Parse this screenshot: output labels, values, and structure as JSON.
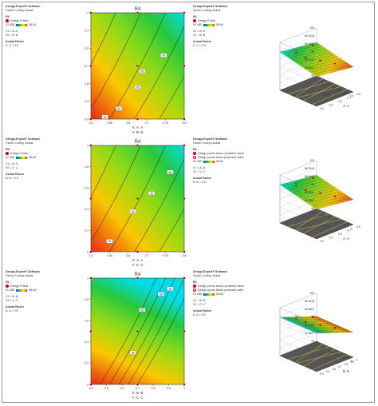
{
  "panels": [
    {
      "software": "Design-Expert® Software",
      "coding": "Factor Coding: Actual",
      "response": "R4",
      "design_points_label": "Design Points",
      "ramp_min": "91.485",
      "ramp_max": "98.64",
      "above_label": "",
      "below_label": "",
      "x1_line": "X1 = A: A",
      "x2_line": "X2 = B: B",
      "actual_factor_title": "Actual Factor",
      "actual_factor_value": "C: C = 0.5"
    },
    {
      "software": "Design-Expert® Software",
      "coding": "Factor Coding: Actual",
      "response": "R4",
      "design_points_label": "Design Points",
      "ramp_min": "91.485",
      "ramp_max": "98.64",
      "above_label": "Design points above predicted value",
      "below_label": "Design points below predicted value",
      "x1_line": "X1 = A: A",
      "x2_line": "X2 = C: C",
      "actual_factor_title": "Actual Factor",
      "actual_factor_value": "B: B = 0.6"
    },
    {
      "software": "Design-Expert® Software",
      "coding": "Factor Coding: Actual",
      "response": "R4",
      "design_points_label": "Design Points",
      "ramp_min": "91.485",
      "ramp_max": "98.64",
      "above_label": "Design points above predicted value",
      "below_label": "Design points below predicted value",
      "x1_line": "X1 = B: B",
      "x2_line": "X2 = C: C",
      "actual_factor_title": "Actual Factor",
      "actual_factor_value": "A: A = 0.6"
    }
  ],
  "chart_data": [
    {
      "type": "contour",
      "title": "R4",
      "xlabel": "X: A: A",
      "ylabel": "Y: B: B",
      "x_ticks": [
        "0.4",
        "0.55",
        "0.6",
        "0.7",
        "0.75",
        "0.8"
      ],
      "y_ticks": [
        "0.4",
        "0.5",
        "0.6",
        "0.7",
        "0.8",
        "0.9",
        "1"
      ],
      "xlim": [
        0.4,
        0.8
      ],
      "ylim": [
        0.4,
        1.0
      ],
      "contour_labels": [
        "95",
        "94",
        "95",
        "96",
        "93"
      ],
      "design_points": [
        [
          0.4,
          0.4
        ],
        [
          0.4,
          1.0
        ],
        [
          0.8,
          0.4
        ],
        [
          0.8,
          1.0
        ],
        [
          0.6,
          0.7
        ],
        [
          0.6,
          0.4
        ],
        [
          0.6,
          1.0
        ],
        [
          0.4,
          0.7
        ],
        [
          0.8,
          0.7
        ]
      ]
    },
    {
      "type": "contour",
      "title": "R4",
      "xlabel": "X: A: A",
      "ylabel": "Y: C: C",
      "x_ticks": [
        "0.4",
        "0.55",
        "0.6",
        "0.7",
        "0.75",
        "0.8"
      ],
      "y_ticks": [
        "0",
        "0.2",
        "0.4",
        "0.6",
        "0.8",
        "1"
      ],
      "xlim": [
        0.4,
        0.8
      ],
      "ylim": [
        0,
        1.0
      ],
      "contour_labels": [
        "93",
        "94",
        "95",
        "96"
      ],
      "design_points": [
        [
          0.4,
          0.0
        ],
        [
          0.4,
          1.0
        ],
        [
          0.8,
          0.0
        ],
        [
          0.8,
          1.0
        ],
        [
          0.6,
          0.5
        ],
        [
          0.6,
          0.0
        ],
        [
          0.6,
          1.0
        ],
        [
          0.4,
          0.5
        ],
        [
          0.8,
          0.5
        ]
      ]
    },
    {
      "type": "contour",
      "title": "R4",
      "xlabel": "X: B: B",
      "ylabel": "Y: C: C",
      "x_ticks": [
        "0.4",
        "0.5",
        "0.6",
        "0.7",
        "0.8",
        "0.9",
        "1"
      ],
      "y_ticks": [
        "0",
        "0.2",
        "0.4",
        "0.6",
        "0.8",
        "1"
      ],
      "xlim": [
        0.4,
        1.0
      ],
      "ylim": [
        0,
        1.0
      ],
      "contour_labels": [
        "94",
        "95",
        "96",
        "95"
      ],
      "design_points": [
        [
          0.4,
          0.0
        ],
        [
          0.4,
          1.0
        ],
        [
          1.0,
          0.0
        ],
        [
          1.0,
          1.0
        ],
        [
          0.7,
          0.5
        ],
        [
          0.7,
          0.0
        ],
        [
          0.7,
          1.0
        ],
        [
          0.4,
          0.5
        ],
        [
          1.0,
          0.5
        ]
      ]
    },
    {
      "type": "surface",
      "zlabel": "R4",
      "z_ticks": [
        "100",
        "98.3333",
        "96.6667",
        "95",
        "93.3333",
        "91.6667",
        "90"
      ],
      "xlabel": "B: B",
      "ylabel": "A: A",
      "x_ticks": [
        "1",
        "0.9",
        "0.8",
        "0.7",
        "0.6",
        "0.5",
        "0.4"
      ],
      "y_ticks": [
        "0.8",
        "0.7",
        "0.6",
        "0.5",
        "0.4"
      ]
    },
    {
      "type": "surface",
      "zlabel": "R4",
      "z_ticks": [
        "100",
        "98.3333",
        "96.6667",
        "95",
        "93.3333",
        "91.6667",
        "90"
      ],
      "xlabel": "C: C",
      "ylabel": "A: A",
      "x_ticks": [
        "1",
        "0.8",
        "0.6",
        "0.4",
        "0.2",
        "0"
      ],
      "y_ticks": [
        "0.8",
        "0.7",
        "0.6",
        "0.5",
        "0.4"
      ]
    },
    {
      "type": "surface",
      "zlabel": "R4",
      "z_ticks": [
        "100",
        "98.3333",
        "96.6667",
        "95",
        "93.3333",
        "91.6667",
        "90"
      ],
      "xlabel": "C: C",
      "ylabel": "B: B",
      "x_ticks": [
        "1",
        "0.8",
        "0.6",
        "0.4",
        "0.2",
        "0"
      ],
      "y_ticks": [
        "1",
        "0.9",
        "0.8",
        "0.7",
        "0.6",
        "0.5",
        "0.4"
      ]
    }
  ]
}
